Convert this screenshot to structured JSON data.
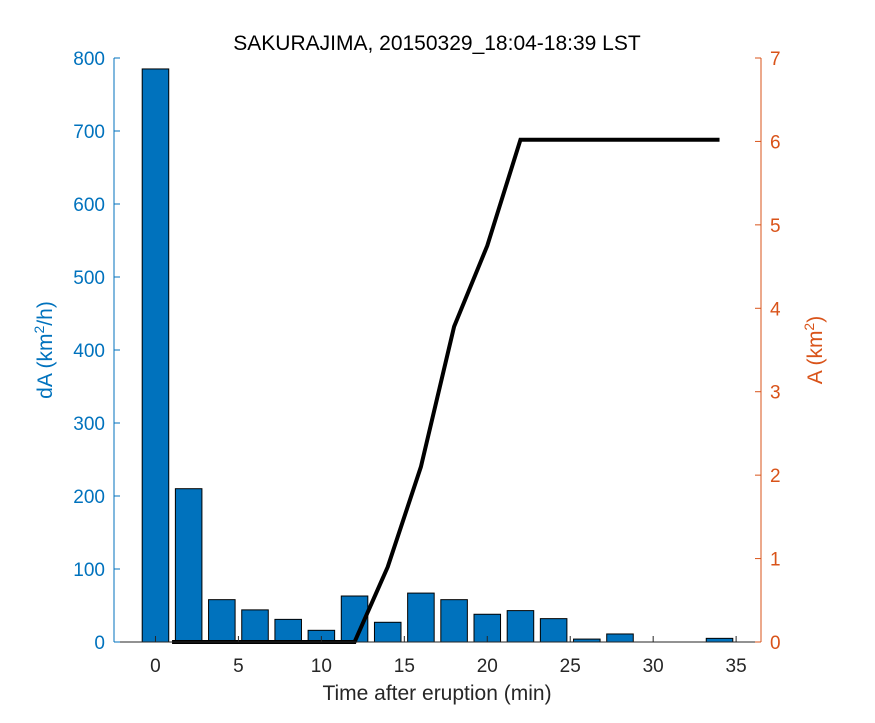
{
  "chart_data": {
    "type": "bar",
    "title": "SAKURAJIMA, 20150329_18:04-18:39 LST",
    "xlabel": "Time after eruption (min)",
    "ylabel_left": {
      "base": "dA (km",
      "sup": "2",
      "tail": "/h)"
    },
    "ylabel_right": {
      "base": "A (km",
      "sup": "2",
      "tail": ")"
    },
    "xlim": [
      -2.5,
      36.5
    ],
    "ylim_left": [
      0,
      800
    ],
    "ylim_right": [
      0,
      7
    ],
    "xticks": [
      0,
      5,
      10,
      15,
      20,
      25,
      30,
      35
    ],
    "yticks_left": [
      0,
      100,
      200,
      300,
      400,
      500,
      600,
      700,
      800
    ],
    "yticks_right": [
      0,
      1,
      2,
      3,
      4,
      5,
      6,
      7
    ],
    "bar_series": {
      "axis": "left",
      "color": "#0072BD",
      "x": [
        0,
        2,
        4,
        6,
        8,
        10,
        12,
        14,
        16,
        18,
        20,
        22,
        24,
        26,
        28,
        30,
        32,
        34
      ],
      "values": [
        785,
        210,
        58,
        44,
        31,
        16,
        63,
        27,
        67,
        58,
        38,
        43,
        32,
        4,
        11,
        0,
        0,
        5
      ]
    },
    "line_series": {
      "axis": "right",
      "color": "#000000",
      "x": [
        1,
        12,
        14,
        16,
        18,
        20,
        22,
        34
      ],
      "values": [
        0,
        0,
        0.9,
        2.1,
        3.78,
        4.75,
        6.02,
        6.02
      ]
    }
  }
}
